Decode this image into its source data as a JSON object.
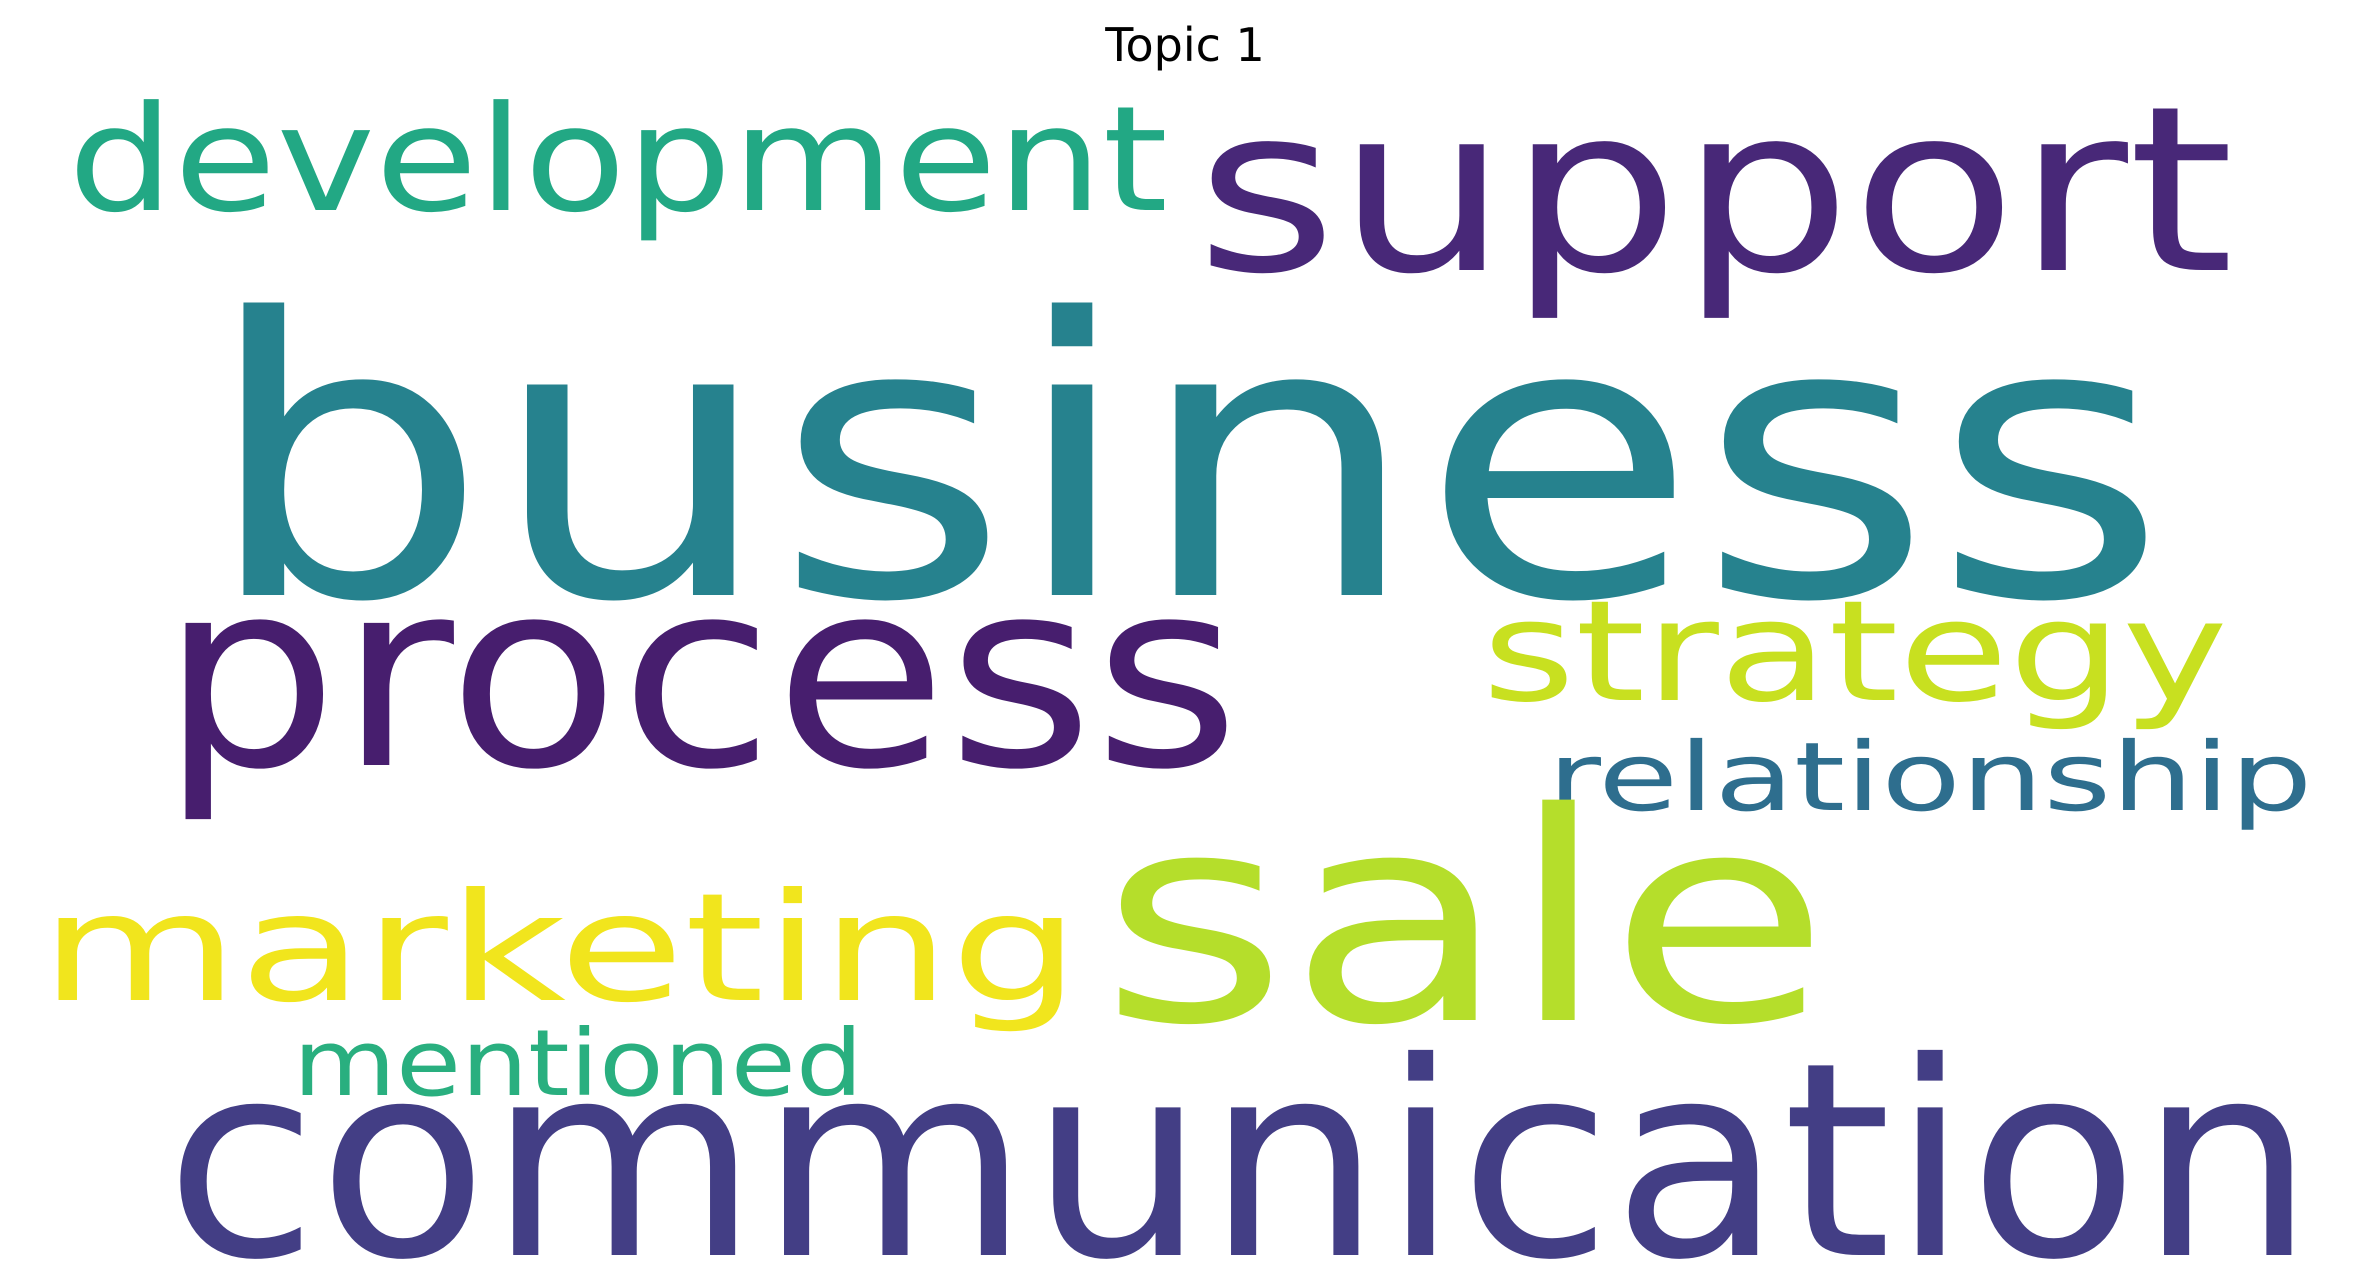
{
  "title": "Topic 1",
  "words": [
    {
      "key": "business",
      "text": "business",
      "color": "#26828e"
    },
    {
      "key": "support",
      "text": "support",
      "color": "#482878"
    },
    {
      "key": "development",
      "text": "development",
      "color": "#22a884"
    },
    {
      "key": "process",
      "text": "process",
      "color": "#471e6e"
    },
    {
      "key": "strategy",
      "text": "strategy",
      "color": "#c8e020"
    },
    {
      "key": "relationship",
      "text": "relationship",
      "color": "#2e6e8e"
    },
    {
      "key": "sale",
      "text": "sale",
      "color": "#b5de2b"
    },
    {
      "key": "marketing",
      "text": "marketing",
      "color": "#f1e51d"
    },
    {
      "key": "mentioned",
      "text": "mentioned",
      "color": "#29af7f"
    },
    {
      "key": "communication",
      "text": "communication",
      "color": "#433e85"
    }
  ]
}
